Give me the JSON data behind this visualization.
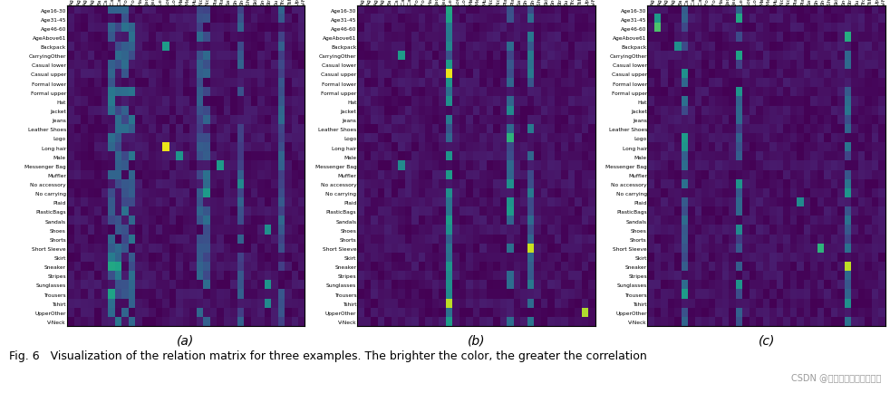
{
  "labels": [
    "Age16-30",
    "Age31-45",
    "Age46-60",
    "AgeAbove61",
    "Backpack",
    "CarryingOther",
    "Casual lower",
    "Casual upper",
    "Formal lower",
    "Formal upper",
    "Hat",
    "Jacket",
    "Jeans",
    "Leather Shoes",
    "Logo",
    "Long hair",
    "Male",
    "Messenger Bag",
    "Muffler",
    "No accessory",
    "No carrying",
    "Plaid",
    "PlasticBags",
    "Sandals",
    "Shoes",
    "Shorts",
    "Short Sleeve",
    "Skirt",
    "Sneaker",
    "Stripes",
    "Sunglasses",
    "Trousers",
    "Tshirt",
    "UpperOther",
    "V-Neck"
  ],
  "n_labels": 35,
  "colormap": "viridis",
  "fig_caption": "Fig. 6   Visualization of the relation matrix for three examples. The brighter the color, the greater the correlation",
  "watermark": "CSDN @或许，这就是梦想吧！",
  "subplot_labels": [
    "(a)",
    "(b)",
    "(c)"
  ],
  "background_color": "#ffffff",
  "caption_fontsize": 9,
  "label_fontsize": 4.2,
  "title_fontsize": 10
}
